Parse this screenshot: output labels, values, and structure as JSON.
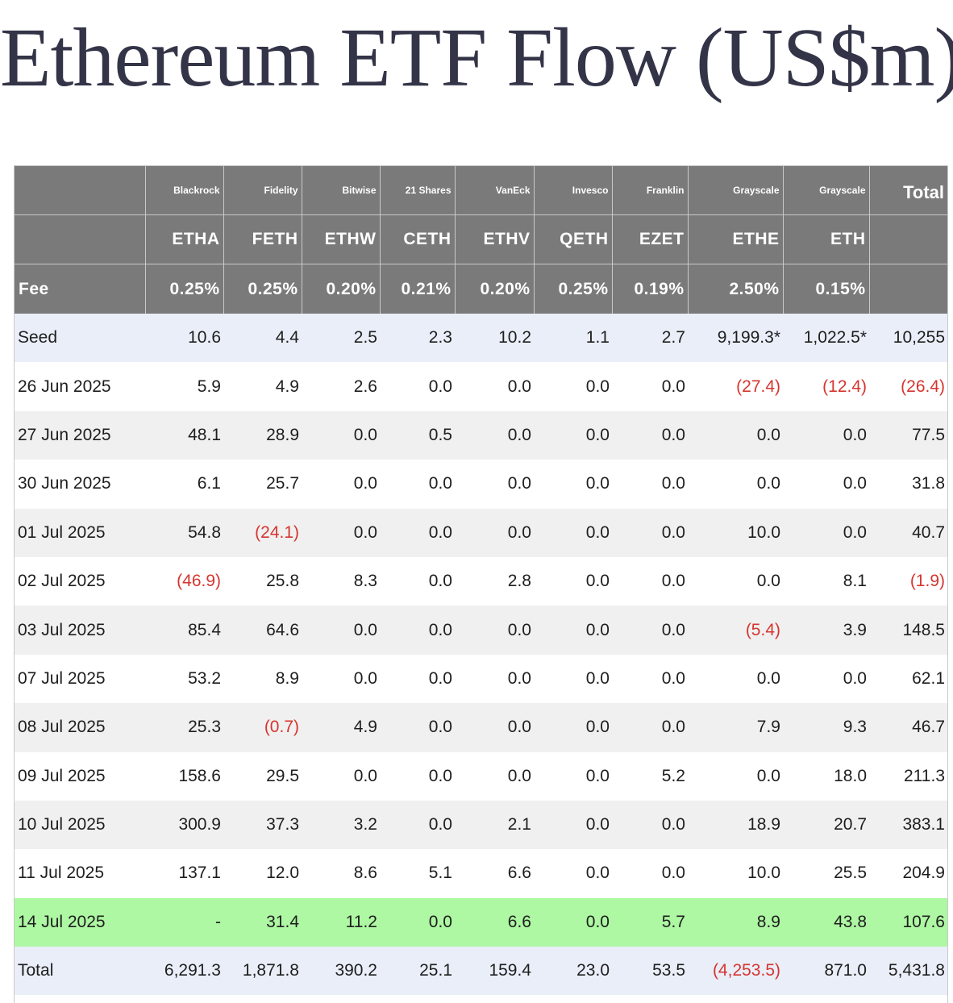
{
  "title": "Ethereum ETF Flow (US$m)",
  "colors": {
    "header_bg": "#7a7a7a",
    "negative": "#d6352f",
    "highlight_row": "#aef7a3",
    "seed_total_row": "#e9eef8",
    "stripe": "#f0f0f0"
  },
  "header": {
    "issuers": [
      "",
      "Blackrock",
      "Fidelity",
      "Bitwise",
      "21 Shares",
      "VanEck",
      "Invesco",
      "Franklin",
      "Grayscale",
      "Grayscale",
      "Total"
    ],
    "tickers": [
      "",
      "ETHA",
      "FETH",
      "ETHW",
      "CETH",
      "ETHV",
      "QETH",
      "EZET",
      "ETHE",
      "ETH",
      ""
    ],
    "fees": [
      "Fee",
      "0.25%",
      "0.25%",
      "0.20%",
      "0.21%",
      "0.20%",
      "0.25%",
      "0.19%",
      "2.50%",
      "0.15%",
      ""
    ]
  },
  "rows": [
    {
      "style": "seed",
      "cells": [
        "Seed",
        "10.6",
        "4.4",
        "2.5",
        "2.3",
        "10.2",
        "1.1",
        "2.7",
        "9,199.3*",
        "1,022.5*",
        "10,255"
      ]
    },
    {
      "style": "odd",
      "cells": [
        "26 Jun 2025",
        "5.9",
        "4.9",
        "2.6",
        "0.0",
        "0.0",
        "0.0",
        "0.0",
        "(27.4)",
        "(12.4)",
        "(26.4)"
      ]
    },
    {
      "style": "even",
      "cells": [
        "27 Jun 2025",
        "48.1",
        "28.9",
        "0.0",
        "0.5",
        "0.0",
        "0.0",
        "0.0",
        "0.0",
        "0.0",
        "77.5"
      ]
    },
    {
      "style": "odd",
      "cells": [
        "30 Jun 2025",
        "6.1",
        "25.7",
        "0.0",
        "0.0",
        "0.0",
        "0.0",
        "0.0",
        "0.0",
        "0.0",
        "31.8"
      ]
    },
    {
      "style": "even",
      "cells": [
        "01 Jul 2025",
        "54.8",
        "(24.1)",
        "0.0",
        "0.0",
        "0.0",
        "0.0",
        "0.0",
        "10.0",
        "0.0",
        "40.7"
      ]
    },
    {
      "style": "odd",
      "cells": [
        "02 Jul 2025",
        "(46.9)",
        "25.8",
        "8.3",
        "0.0",
        "2.8",
        "0.0",
        "0.0",
        "0.0",
        "8.1",
        "(1.9)"
      ]
    },
    {
      "style": "even",
      "cells": [
        "03 Jul 2025",
        "85.4",
        "64.6",
        "0.0",
        "0.0",
        "0.0",
        "0.0",
        "0.0",
        "(5.4)",
        "3.9",
        "148.5"
      ]
    },
    {
      "style": "odd",
      "cells": [
        "07 Jul 2025",
        "53.2",
        "8.9",
        "0.0",
        "0.0",
        "0.0",
        "0.0",
        "0.0",
        "0.0",
        "0.0",
        "62.1"
      ]
    },
    {
      "style": "even",
      "cells": [
        "08 Jul 2025",
        "25.3",
        "(0.7)",
        "4.9",
        "0.0",
        "0.0",
        "0.0",
        "0.0",
        "7.9",
        "9.3",
        "46.7"
      ]
    },
    {
      "style": "odd",
      "cells": [
        "09 Jul 2025",
        "158.6",
        "29.5",
        "0.0",
        "0.0",
        "0.0",
        "0.0",
        "5.2",
        "0.0",
        "18.0",
        "211.3"
      ]
    },
    {
      "style": "even",
      "cells": [
        "10 Jul 2025",
        "300.9",
        "37.3",
        "3.2",
        "0.0",
        "2.1",
        "0.0",
        "0.0",
        "18.9",
        "20.7",
        "383.1"
      ]
    },
    {
      "style": "odd",
      "cells": [
        "11 Jul 2025",
        "137.1",
        "12.0",
        "8.6",
        "5.1",
        "6.6",
        "0.0",
        "0.0",
        "10.0",
        "25.5",
        "204.9"
      ]
    },
    {
      "style": "latest",
      "cells": [
        "14 Jul 2025",
        "-",
        "31.4",
        "11.2",
        "0.0",
        "6.6",
        "0.0",
        "5.7",
        "8.9",
        "43.8",
        "107.6"
      ]
    },
    {
      "style": "total",
      "cells": [
        "Total",
        "6,291.3",
        "1,871.8",
        "390.2",
        "25.1",
        "159.4",
        "23.0",
        "53.5",
        "(4,253.5)",
        "871.0",
        "5,431.8"
      ]
    }
  ],
  "chart_data": {
    "type": "table",
    "title": "Ethereum ETF Flow (US$m)",
    "columns": [
      "ETHA",
      "FETH",
      "ETHW",
      "CETH",
      "ETHV",
      "QETH",
      "EZET",
      "ETHE",
      "ETH",
      "Total"
    ],
    "issuers": [
      "Blackrock",
      "Fidelity",
      "Bitwise",
      "21 Shares",
      "VanEck",
      "Invesco",
      "Franklin",
      "Grayscale",
      "Grayscale",
      "Total"
    ],
    "fees": [
      "0.25%",
      "0.25%",
      "0.20%",
      "0.21%",
      "0.20%",
      "0.25%",
      "0.19%",
      "2.50%",
      "0.15%"
    ],
    "row_labels": [
      "Seed",
      "26 Jun 2025",
      "27 Jun 2025",
      "30 Jun 2025",
      "01 Jul 2025",
      "02 Jul 2025",
      "03 Jul 2025",
      "07 Jul 2025",
      "08 Jul 2025",
      "09 Jul 2025",
      "10 Jul 2025",
      "11 Jul 2025",
      "14 Jul 2025",
      "Total"
    ],
    "values": [
      [
        10.6,
        4.4,
        2.5,
        2.3,
        10.2,
        1.1,
        2.7,
        9199.3,
        1022.5,
        10255
      ],
      [
        5.9,
        4.9,
        2.6,
        0.0,
        0.0,
        0.0,
        0.0,
        -27.4,
        -12.4,
        -26.4
      ],
      [
        48.1,
        28.9,
        0.0,
        0.5,
        0.0,
        0.0,
        0.0,
        0.0,
        0.0,
        77.5
      ],
      [
        6.1,
        25.7,
        0.0,
        0.0,
        0.0,
        0.0,
        0.0,
        0.0,
        0.0,
        31.8
      ],
      [
        54.8,
        -24.1,
        0.0,
        0.0,
        0.0,
        0.0,
        0.0,
        10.0,
        0.0,
        40.7
      ],
      [
        -46.9,
        25.8,
        8.3,
        0.0,
        2.8,
        0.0,
        0.0,
        0.0,
        8.1,
        -1.9
      ],
      [
        85.4,
        64.6,
        0.0,
        0.0,
        0.0,
        0.0,
        0.0,
        -5.4,
        3.9,
        148.5
      ],
      [
        53.2,
        8.9,
        0.0,
        0.0,
        0.0,
        0.0,
        0.0,
        0.0,
        0.0,
        62.1
      ],
      [
        25.3,
        -0.7,
        4.9,
        0.0,
        0.0,
        0.0,
        0.0,
        7.9,
        9.3,
        46.7
      ],
      [
        158.6,
        29.5,
        0.0,
        0.0,
        0.0,
        0.0,
        5.2,
        0.0,
        18.0,
        211.3
      ],
      [
        300.9,
        37.3,
        3.2,
        0.0,
        2.1,
        0.0,
        0.0,
        18.9,
        20.7,
        383.1
      ],
      [
        137.1,
        12.0,
        8.6,
        5.1,
        6.6,
        0.0,
        0.0,
        10.0,
        25.5,
        204.9
      ],
      [
        null,
        31.4,
        11.2,
        0.0,
        6.6,
        0.0,
        5.7,
        8.9,
        43.8,
        107.6
      ],
      [
        6291.3,
        1871.8,
        390.2,
        25.1,
        159.4,
        23.0,
        53.5,
        -4253.5,
        871.0,
        5431.8
      ]
    ]
  }
}
